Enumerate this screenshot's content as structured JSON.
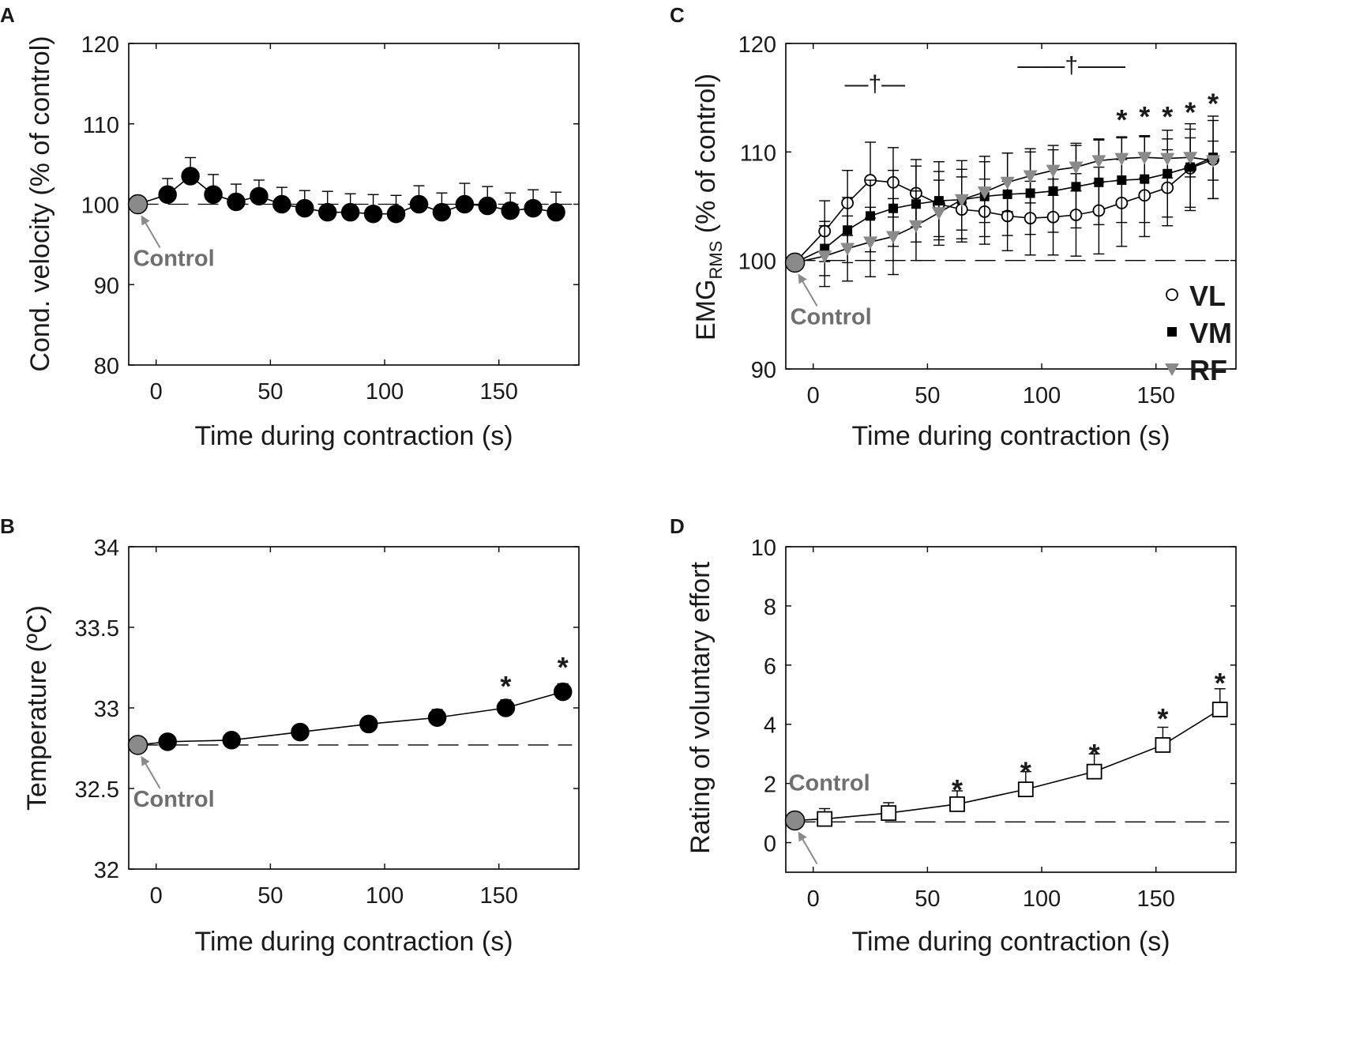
{
  "chart_data": [
    {
      "panel": "A",
      "type": "line",
      "xlabel": "Time during contraction (s)",
      "ylabel": "Cond. velocity  (% of control)",
      "xlim": [
        -12,
        185
      ],
      "ylim": [
        80,
        120
      ],
      "xticks": [
        "0",
        "50",
        "100",
        "150"
      ],
      "yticks": [
        "80",
        "90",
        "100",
        "110",
        "120"
      ],
      "baseline": 100,
      "control": {
        "x": -8,
        "y": 100,
        "label": "Control"
      },
      "series": [
        {
          "name": "Cond. velocity",
          "marker": "circle-filled",
          "x": [
            5,
            15,
            25,
            35,
            45,
            55,
            65,
            75,
            85,
            95,
            105,
            115,
            125,
            135,
            145,
            155,
            165,
            175
          ],
          "y": [
            101.2,
            103.5,
            101.2,
            100.3,
            101.0,
            100.0,
            99.5,
            99.0,
            99.0,
            98.8,
            98.8,
            100.0,
            99.0,
            100.0,
            99.8,
            99.2,
            99.5,
            99.0
          ],
          "err": [
            2.0,
            2.3,
            2.5,
            2.2,
            2.0,
            2.1,
            2.2,
            2.6,
            2.3,
            2.4,
            2.3,
            2.3,
            2.4,
            2.6,
            2.4,
            2.2,
            2.3,
            2.5
          ]
        }
      ],
      "annotations": []
    },
    {
      "panel": "B",
      "type": "line",
      "xlabel": "Time during contraction (s)",
      "ylabel": "Temperature (ºC)",
      "xlim": [
        -12,
        185
      ],
      "ylim": [
        32,
        34
      ],
      "xticks": [
        "0",
        "50",
        "100",
        "150"
      ],
      "yticks": [
        "32",
        "32.5",
        "33",
        "33.5",
        "34"
      ],
      "baseline": 32.77,
      "control": {
        "x": -8,
        "y": 32.77,
        "label": "Control"
      },
      "series": [
        {
          "name": "Temperature",
          "marker": "circle-filled",
          "x": [
            5,
            33,
            63,
            93,
            123,
            153,
            178
          ],
          "y": [
            32.79,
            32.8,
            32.85,
            32.9,
            32.94,
            33.0,
            33.1
          ],
          "err": [
            0.02,
            0.02,
            0.03,
            0.04,
            0.05,
            0.05,
            0.05
          ]
        }
      ],
      "annotations": [
        {
          "text": "*",
          "x": 153,
          "y": 33.19
        },
        {
          "text": "*",
          "x": 178,
          "y": 33.31
        }
      ]
    },
    {
      "panel": "C",
      "type": "line",
      "xlabel": "Time during contraction (s)",
      "ylabel": "EMG",
      "ylabel_sub": "RMS",
      "ylabel_rest": " (% of control)",
      "xlim": [
        -12,
        185
      ],
      "ylim": [
        90,
        120
      ],
      "xticks": [
        "0",
        "50",
        "100",
        "150"
      ],
      "yticks": [
        "90",
        "100",
        "110",
        "120"
      ],
      "baseline": 100,
      "control": {
        "x": -8,
        "y": 99.8,
        "label": "Control"
      },
      "legend": [
        {
          "label": "VL",
          "marker": "circle-open"
        },
        {
          "label": "VM",
          "marker": "square-filled"
        },
        {
          "label": "RF",
          "marker": "triangle-gray"
        }
      ],
      "series": [
        {
          "name": "VL",
          "marker": "circle-open",
          "x": [
            5,
            15,
            25,
            35,
            45,
            55,
            65,
            75,
            85,
            95,
            105,
            115,
            125,
            135,
            145,
            155,
            165,
            175
          ],
          "y": [
            102.7,
            105.3,
            107.4,
            107.2,
            106.2,
            105.2,
            104.7,
            104.5,
            104.1,
            103.9,
            104.0,
            104.2,
            104.6,
            105.3,
            106.0,
            106.7,
            108.5,
            109.3
          ],
          "err": [
            2.8,
            3.0,
            3.5,
            3.2,
            3.1,
            3.0,
            3.0,
            3.0,
            3.2,
            3.4,
            3.5,
            3.8,
            4.0,
            4.0,
            3.8,
            3.5,
            3.6,
            3.6
          ]
        },
        {
          "name": "VM",
          "marker": "square-filled",
          "x": [
            5,
            15,
            25,
            35,
            45,
            55,
            65,
            75,
            85,
            95,
            105,
            115,
            125,
            135,
            145,
            155,
            165,
            175
          ],
          "y": [
            101.1,
            102.8,
            104.1,
            104.8,
            105.2,
            105.5,
            105.6,
            105.9,
            106.1,
            106.2,
            106.4,
            106.8,
            107.2,
            107.4,
            107.5,
            108.0,
            108.6,
            109.5
          ],
          "err": [
            2.5,
            3.0,
            3.3,
            3.5,
            3.5,
            3.6,
            3.6,
            3.7,
            3.8,
            3.8,
            3.8,
            3.8,
            3.9,
            3.9,
            4.0,
            4.0,
            4.0,
            3.8
          ]
        },
        {
          "name": "RF",
          "marker": "triangle-gray",
          "x": [
            5,
            15,
            25,
            35,
            45,
            55,
            65,
            75,
            85,
            95,
            105,
            115,
            125,
            135,
            145,
            155,
            165,
            175
          ],
          "y": [
            100.4,
            101.1,
            101.7,
            102.2,
            103.2,
            104.4,
            105.6,
            106.3,
            107.2,
            107.8,
            108.3,
            108.6,
            109.2,
            109.4,
            109.5,
            109.4,
            109.5,
            109.2
          ],
          "err": [
            2.8,
            3.0,
            3.2,
            3.5,
            3.2,
            3.0,
            2.8,
            2.8,
            2.7,
            2.5,
            2.3,
            2.2,
            2.0,
            2.0,
            1.9,
            1.8,
            1.8,
            1.8
          ]
        }
      ],
      "annotations": [
        {
          "text": "—†—",
          "x": 27,
          "y": 116.3
        },
        {
          "text": "——†——",
          "x": 113,
          "y": 118.0
        },
        {
          "text": "*",
          "x": 135,
          "y": 113.8
        },
        {
          "text": "*",
          "x": 145,
          "y": 114.1
        },
        {
          "text": "*",
          "x": 155,
          "y": 114.1
        },
        {
          "text": "*",
          "x": 165,
          "y": 114.5
        },
        {
          "text": "*",
          "x": 175,
          "y": 115.3
        }
      ]
    },
    {
      "panel": "D",
      "type": "line",
      "xlabel": "Time during contraction (s)",
      "ylabel": "Rating of voluntary effort",
      "xlim": [
        -12,
        185
      ],
      "ylim": [
        -1,
        10
      ],
      "xticks": [
        "0",
        "50",
        "100",
        "150"
      ],
      "yticks": [
        "0",
        "2",
        "4",
        "6",
        "8",
        "10"
      ],
      "baseline": 0.7,
      "control": {
        "x": -8,
        "y": 0.75,
        "label": "Control"
      },
      "series": [
        {
          "name": "Effort rating",
          "marker": "square-open",
          "x": [
            5,
            33,
            63,
            93,
            123,
            153,
            178
          ],
          "y": [
            0.8,
            1.0,
            1.3,
            1.8,
            2.4,
            3.3,
            4.5
          ],
          "err": [
            0.35,
            0.35,
            0.45,
            0.6,
            0.6,
            0.6,
            0.7
          ]
        }
      ],
      "annotations": [
        {
          "text": "*",
          "x": 63,
          "y": 2.1
        },
        {
          "text": "*",
          "x": 93,
          "y": 2.7
        },
        {
          "text": "*",
          "x": 123,
          "y": 3.3
        },
        {
          "text": "*",
          "x": 153,
          "y": 4.5
        },
        {
          "text": "*",
          "x": 178,
          "y": 5.7
        }
      ]
    }
  ]
}
